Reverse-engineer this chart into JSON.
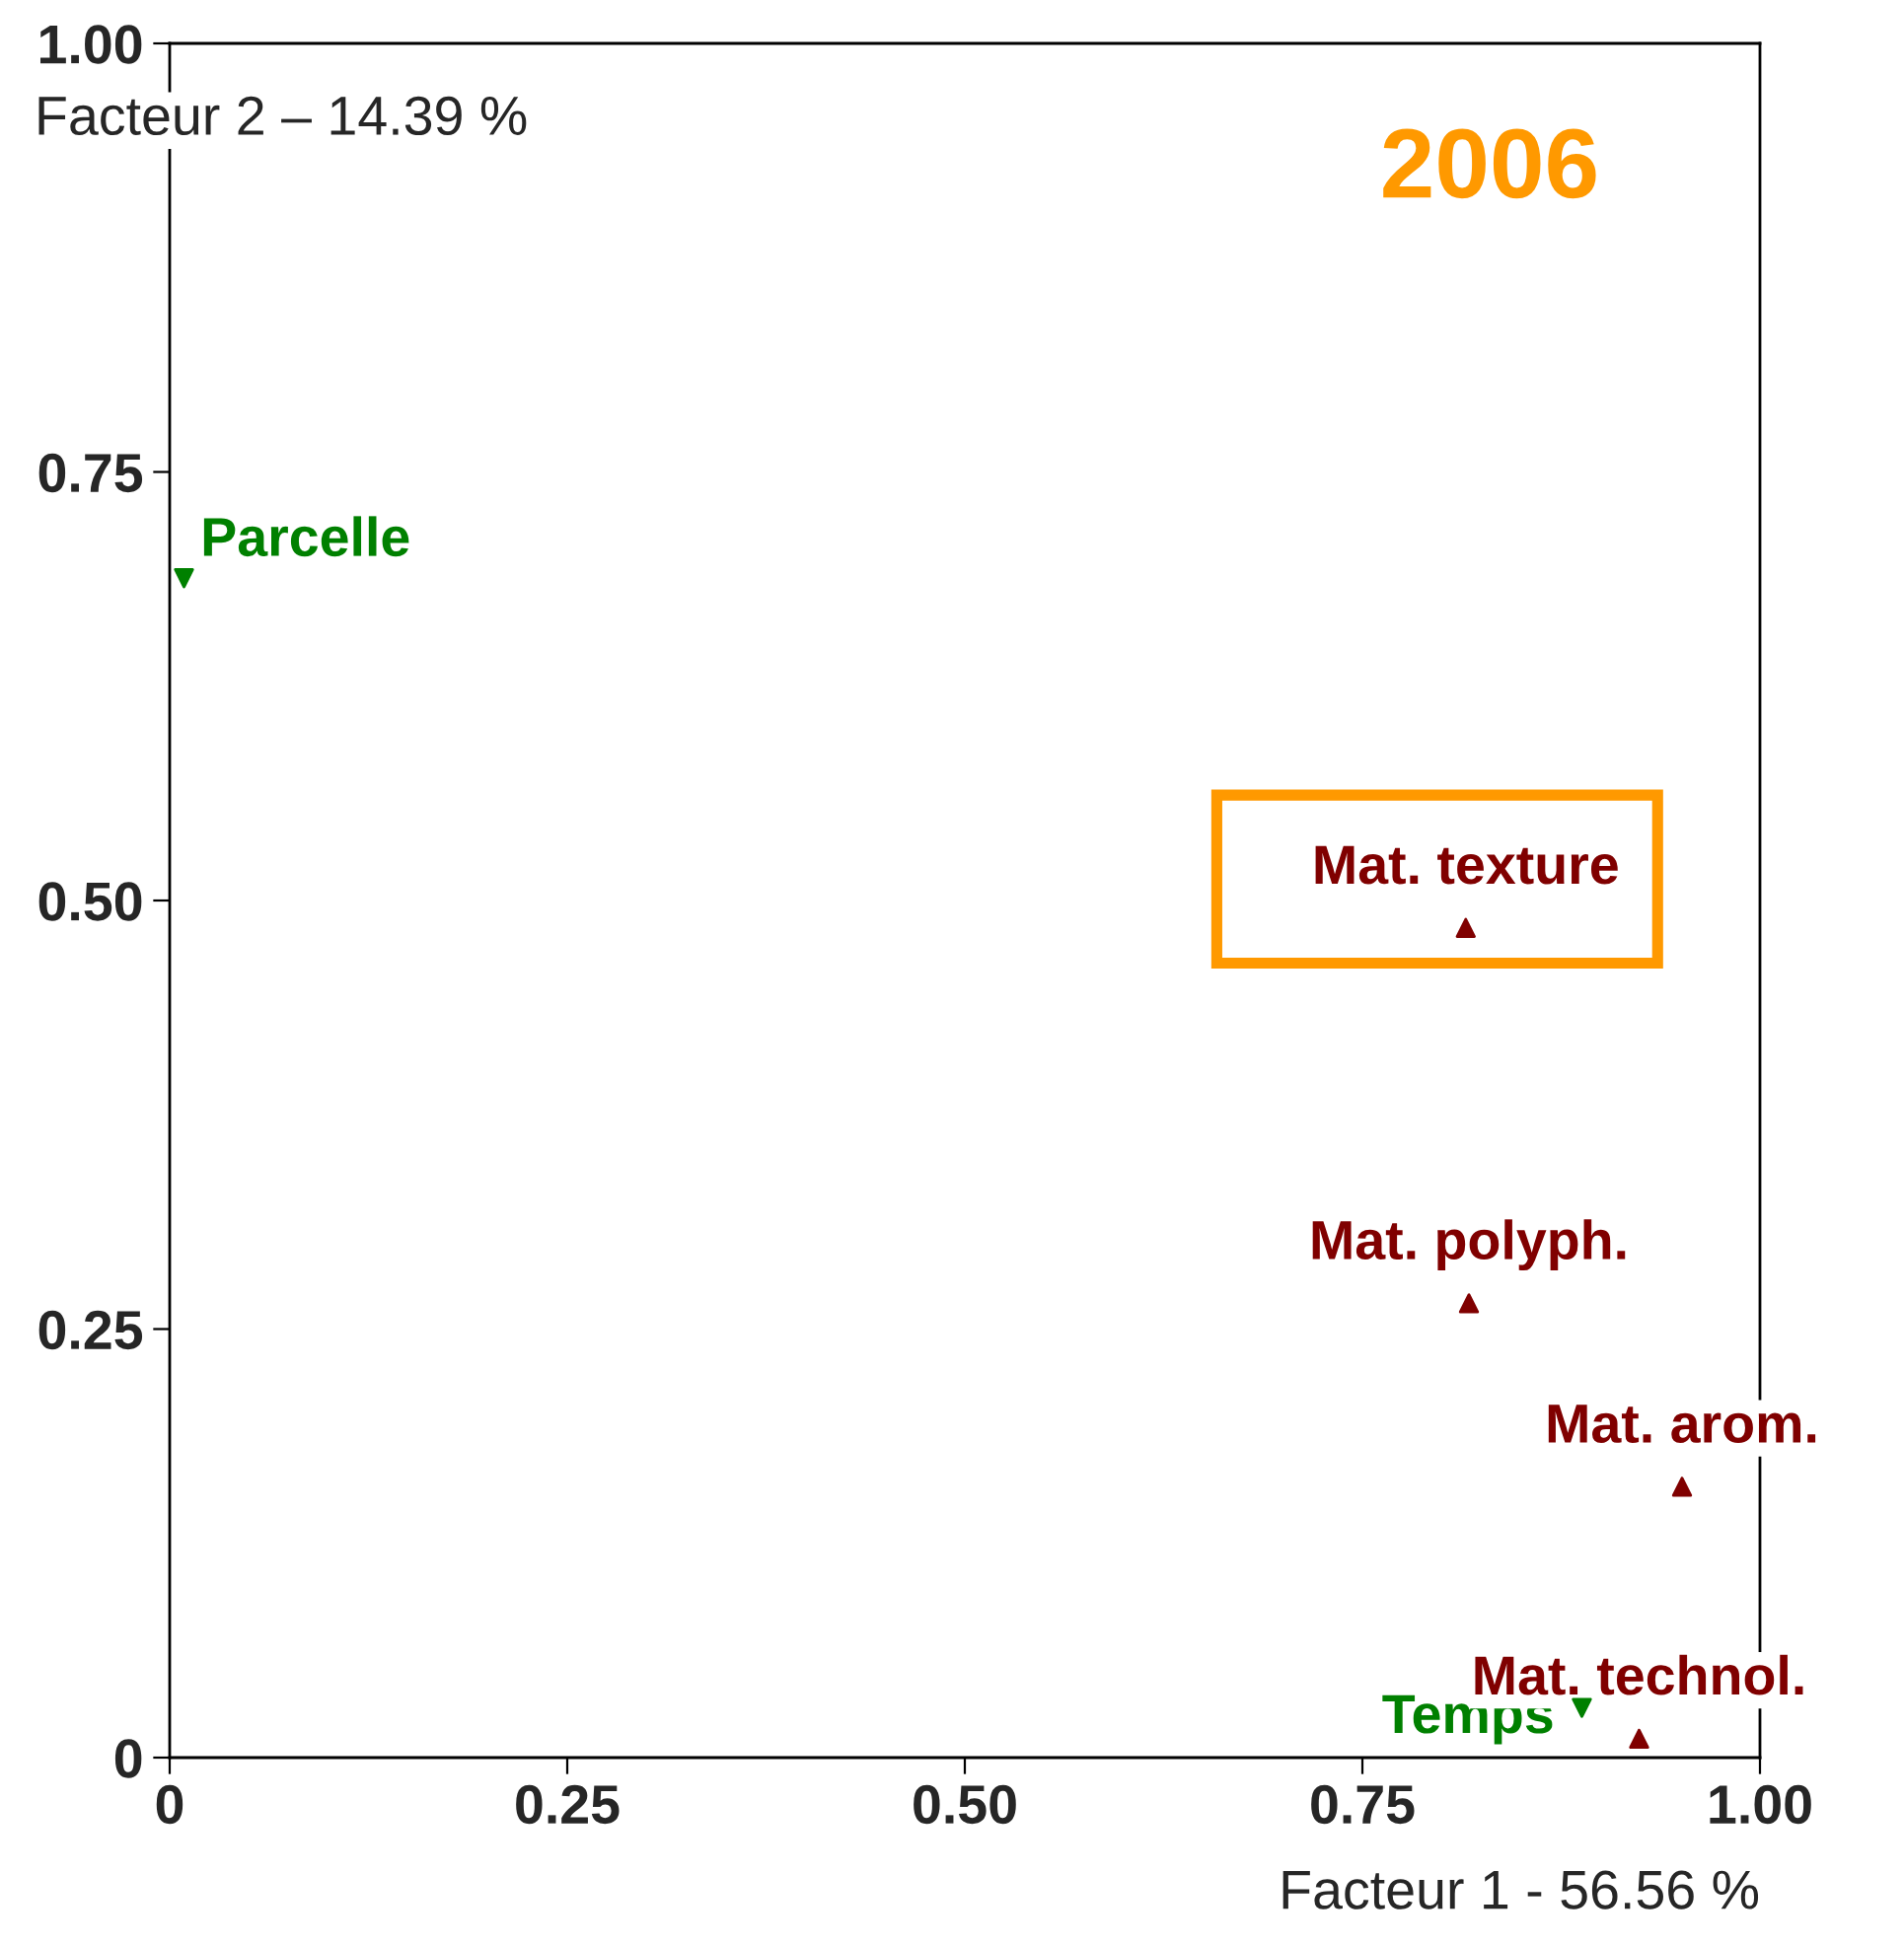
{
  "chart_data": {
    "type": "scatter",
    "xlabel": "Facteur 1 - 56.56 %",
    "ylabel": "Facteur 2 – 14.39 %",
    "annotations": [
      "2006"
    ],
    "series": [
      {
        "color": "#008000",
        "marker": "triangle_down",
        "x": [
          0.009,
          0.888
        ],
        "values": [
          0.688,
          0.029
        ],
        "value_labels": [
          "Parcelle",
          "Temps"
        ]
      },
      {
        "color": "#800000",
        "marker": "triangle",
        "x": [
          0.815,
          0.817,
          0.951,
          0.924
        ],
        "values": [
          0.484,
          0.265,
          0.158,
          0.011
        ],
        "value_labels": [
          "Mat. texture",
          "Mat. polyph.",
          "Mat. arom.",
          "Mat. technol."
        ]
      }
    ],
    "xlim": [
      0,
      1.0
    ],
    "ylim": [
      0,
      1.0
    ],
    "xticks": [
      {
        "value": 0,
        "label": "0"
      },
      0.25,
      {
        "value": 0.5,
        "label": "0.50"
      },
      0.75,
      {
        "value": 1.0,
        "label": "1.00"
      }
    ],
    "yticks": [
      {
        "value": 0,
        "label": "0"
      },
      0.25,
      {
        "value": 0.5,
        "label": "0.50"
      },
      0.75,
      {
        "value": 1.0,
        "label": "1.00"
      }
    ],
    "grid": false,
    "legend": false
  }
}
